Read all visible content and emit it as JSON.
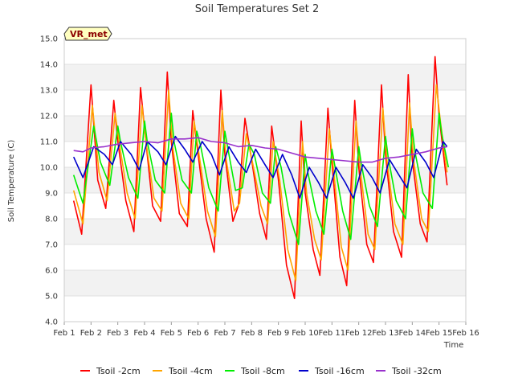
{
  "chart_data": {
    "type": "line",
    "title": "Soil Temperatures Set 2",
    "xlabel": "Time",
    "ylabel": "Soil Temperature (C)",
    "ylim": [
      4.0,
      15.0
    ],
    "xlim": [
      1,
      16
    ],
    "grid": "horizontal bands",
    "legend_position": "bottom",
    "badge": "VR_met",
    "x_ticks": [
      {
        "v": 1,
        "label": "Feb 1"
      },
      {
        "v": 2,
        "label": "Feb 2"
      },
      {
        "v": 3,
        "label": "Feb 3"
      },
      {
        "v": 4,
        "label": "Feb 4"
      },
      {
        "v": 5,
        "label": "Feb 5"
      },
      {
        "v": 6,
        "label": "Feb 6"
      },
      {
        "v": 7,
        "label": "Feb 7"
      },
      {
        "v": 8,
        "label": "Feb 8"
      },
      {
        "v": 9,
        "label": "Feb 9"
      },
      {
        "v": 10,
        "label": "Feb 10"
      },
      {
        "v": 11,
        "label": "Feb 11"
      },
      {
        "v": 12,
        "label": "Feb 12"
      },
      {
        "v": 13,
        "label": "Feb 13"
      },
      {
        "v": 14,
        "label": "Feb 14"
      },
      {
        "v": 15,
        "label": "Feb 15"
      },
      {
        "v": 16,
        "label": "Feb 16"
      }
    ],
    "y_ticks": [
      {
        "v": 4.0,
        "label": "4.0"
      },
      {
        "v": 5.0,
        "label": "5.0"
      },
      {
        "v": 6.0,
        "label": "6.0"
      },
      {
        "v": 7.0,
        "label": "7.0"
      },
      {
        "v": 8.0,
        "label": "8.0"
      },
      {
        "v": 9.0,
        "label": "9.0"
      },
      {
        "v": 10.0,
        "label": "10.0"
      },
      {
        "v": 11.0,
        "label": "11.0"
      },
      {
        "v": 12.0,
        "label": "12.0"
      },
      {
        "v": 13.0,
        "label": "13.0"
      },
      {
        "v": 14.0,
        "label": "14.0"
      },
      {
        "v": 15.0,
        "label": "15.0"
      }
    ],
    "series": [
      {
        "name": "Tsoil -2cm",
        "color": "#ff0000",
        "x": [
          1.35,
          1.65,
          2.0,
          2.25,
          2.55,
          2.85,
          3.0,
          3.3,
          3.6,
          3.85,
          4.0,
          4.3,
          4.6,
          4.85,
          5.0,
          5.3,
          5.6,
          5.8,
          6.0,
          6.3,
          6.6,
          6.85,
          7.0,
          7.3,
          7.5,
          7.75,
          8.0,
          8.3,
          8.55,
          8.75,
          9.0,
          9.3,
          9.6,
          9.85,
          10.0,
          10.3,
          10.55,
          10.85,
          11.0,
          11.3,
          11.55,
          11.85,
          12.0,
          12.3,
          12.55,
          12.85,
          13.0,
          13.3,
          13.6,
          13.85,
          14.0,
          14.3,
          14.55,
          14.85,
          15.0,
          15.3
        ],
        "y": [
          8.7,
          7.4,
          13.2,
          9.5,
          8.4,
          12.6,
          11.0,
          8.7,
          7.5,
          13.1,
          11.5,
          8.5,
          7.9,
          13.7,
          11.0,
          8.2,
          7.7,
          12.2,
          10.5,
          8.0,
          6.7,
          13.0,
          10.5,
          7.9,
          8.5,
          11.9,
          10.3,
          8.2,
          7.2,
          11.6,
          9.5,
          6.2,
          4.9,
          11.8,
          9.0,
          6.8,
          5.8,
          12.3,
          10.2,
          6.5,
          5.4,
          12.6,
          10.0,
          7.0,
          6.3,
          13.2,
          10.5,
          7.5,
          6.5,
          13.6,
          10.3,
          7.8,
          7.1,
          14.3,
          12.0,
          9.3
        ]
      },
      {
        "name": "Tsoil -4cm",
        "color": "#ffa500",
        "x": [
          1.35,
          1.7,
          2.05,
          2.3,
          2.6,
          2.9,
          3.05,
          3.35,
          3.65,
          3.9,
          4.05,
          4.35,
          4.65,
          4.9,
          5.05,
          5.35,
          5.65,
          5.85,
          6.05,
          6.35,
          6.65,
          6.9,
          7.05,
          7.35,
          7.55,
          7.8,
          8.05,
          8.35,
          8.6,
          8.8,
          9.05,
          9.35,
          9.65,
          9.9,
          10.05,
          10.35,
          10.6,
          10.9,
          11.05,
          11.35,
          11.6,
          11.9,
          12.05,
          12.35,
          12.6,
          12.9,
          13.05,
          13.35,
          13.65,
          13.9,
          14.05,
          14.35,
          14.6,
          14.9,
          15.05,
          15.3
        ],
        "y": [
          9.1,
          7.8,
          12.4,
          9.8,
          8.7,
          12.1,
          11.0,
          9.0,
          8.0,
          12.4,
          11.0,
          8.8,
          8.3,
          13.0,
          10.8,
          8.6,
          8.0,
          11.8,
          10.4,
          8.3,
          7.3,
          12.2,
          10.3,
          8.3,
          8.6,
          11.3,
          10.1,
          8.5,
          7.8,
          11.0,
          9.5,
          6.8,
          5.6,
          11.0,
          9.0,
          7.2,
          6.4,
          11.5,
          10.0,
          6.9,
          6.0,
          11.8,
          10.0,
          7.4,
          6.8,
          12.3,
          10.3,
          7.8,
          7.0,
          12.5,
          10.3,
          8.0,
          7.5,
          13.2,
          11.8,
          9.8
        ]
      },
      {
        "name": "Tsoil -8cm",
        "color": "#00ee00",
        "x": [
          1.35,
          1.7,
          2.1,
          2.35,
          2.7,
          3.0,
          3.1,
          3.4,
          3.75,
          4.0,
          4.1,
          4.4,
          4.75,
          5.0,
          5.1,
          5.4,
          5.75,
          5.95,
          6.1,
          6.4,
          6.75,
          7.0,
          7.1,
          7.4,
          7.65,
          7.9,
          8.1,
          8.4,
          8.7,
          8.9,
          9.1,
          9.4,
          9.75,
          10.0,
          10.1,
          10.4,
          10.7,
          11.0,
          11.1,
          11.4,
          11.7,
          12.0,
          12.1,
          12.4,
          12.7,
          13.0,
          13.1,
          13.4,
          13.75,
          14.0,
          14.1,
          14.4,
          14.75,
          15.0,
          15.1,
          15.35
        ],
        "y": [
          9.7,
          8.6,
          11.6,
          10.2,
          9.3,
          11.6,
          11.0,
          9.6,
          8.8,
          11.8,
          11.0,
          9.5,
          9.0,
          12.1,
          11.0,
          9.5,
          9.0,
          11.4,
          10.8,
          9.2,
          8.3,
          11.4,
          10.8,
          9.1,
          9.2,
          10.9,
          10.5,
          9.0,
          8.6,
          10.8,
          10.0,
          8.2,
          7.0,
          10.5,
          9.8,
          8.3,
          7.4,
          10.7,
          10.1,
          8.3,
          7.2,
          10.8,
          10.1,
          8.5,
          7.7,
          11.2,
          10.4,
          8.7,
          8.0,
          11.5,
          10.6,
          9.0,
          8.4,
          12.1,
          11.3,
          10.0
        ]
      },
      {
        "name": "Tsoil -16cm",
        "color": "#0000cc",
        "x": [
          1.35,
          1.7,
          2.1,
          2.5,
          2.8,
          3.1,
          3.5,
          3.8,
          4.1,
          4.5,
          4.8,
          5.15,
          5.5,
          5.8,
          6.15,
          6.5,
          6.8,
          7.15,
          7.5,
          7.8,
          8.15,
          8.5,
          8.8,
          9.15,
          9.5,
          9.8,
          10.15,
          10.5,
          10.8,
          11.15,
          11.5,
          11.8,
          12.15,
          12.5,
          12.8,
          13.15,
          13.5,
          13.8,
          14.15,
          14.5,
          14.8,
          15.15,
          15.3
        ],
        "y": [
          10.4,
          9.6,
          10.8,
          10.5,
          10.1,
          11.0,
          10.5,
          9.9,
          11.0,
          10.6,
          10.1,
          11.2,
          10.7,
          10.2,
          11.0,
          10.5,
          9.7,
          10.8,
          10.2,
          9.8,
          10.7,
          10.1,
          9.6,
          10.5,
          9.7,
          8.8,
          10.0,
          9.4,
          8.8,
          10.0,
          9.4,
          8.8,
          10.1,
          9.6,
          9.0,
          10.3,
          9.7,
          9.2,
          10.7,
          10.2,
          9.6,
          11.0,
          10.8
        ]
      },
      {
        "name": "Tsoil -32cm",
        "color": "#9932cc",
        "x": [
          1.35,
          1.7,
          2.0,
          2.5,
          3.0,
          3.5,
          4.0,
          4.5,
          5.0,
          5.5,
          6.0,
          6.5,
          7.0,
          7.5,
          8.0,
          8.5,
          9.0,
          9.5,
          10.0,
          10.5,
          11.0,
          11.5,
          12.0,
          12.5,
          13.0,
          13.5,
          14.0,
          14.5,
          15.0,
          15.3
        ],
        "y": [
          10.65,
          10.6,
          10.75,
          10.8,
          10.9,
          10.95,
          11.0,
          10.95,
          11.1,
          11.1,
          11.15,
          11.0,
          10.95,
          10.8,
          10.85,
          10.75,
          10.7,
          10.55,
          10.4,
          10.35,
          10.3,
          10.25,
          10.2,
          10.2,
          10.35,
          10.4,
          10.5,
          10.6,
          10.75,
          10.8
        ]
      }
    ]
  }
}
